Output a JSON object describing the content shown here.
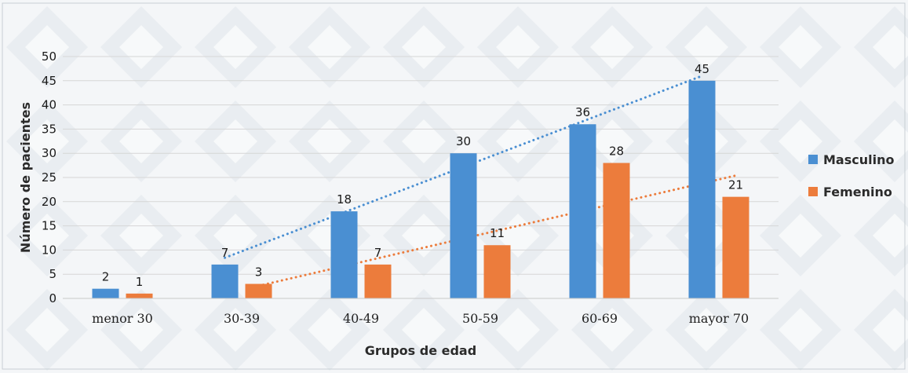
{
  "chart_data": {
    "type": "bar",
    "categories": [
      "menor 30",
      "30-39",
      "40-49",
      "50-59",
      "60-69",
      "mayor 70"
    ],
    "series": [
      {
        "name": "Masculino",
        "values": [
          2,
          7,
          18,
          30,
          36,
          45
        ],
        "color": "#4a8fd2"
      },
      {
        "name": "Femenino",
        "values": [
          1,
          3,
          7,
          11,
          28,
          21
        ],
        "color": "#ec7c3c"
      }
    ],
    "trendlines": [
      {
        "series": "Masculino",
        "type": "dotted",
        "color": "#4a8fd2"
      },
      {
        "series": "Femenino",
        "type": "dotted",
        "color": "#ec7c3c"
      }
    ],
    "title": "",
    "xlabel": "Grupos de edad",
    "ylabel": "Número de pacientes",
    "ylim": [
      0,
      50
    ],
    "yticks": [
      0,
      5,
      10,
      15,
      20,
      25,
      30,
      35,
      40,
      45,
      50
    ],
    "grid": true,
    "legend_position": "right"
  }
}
